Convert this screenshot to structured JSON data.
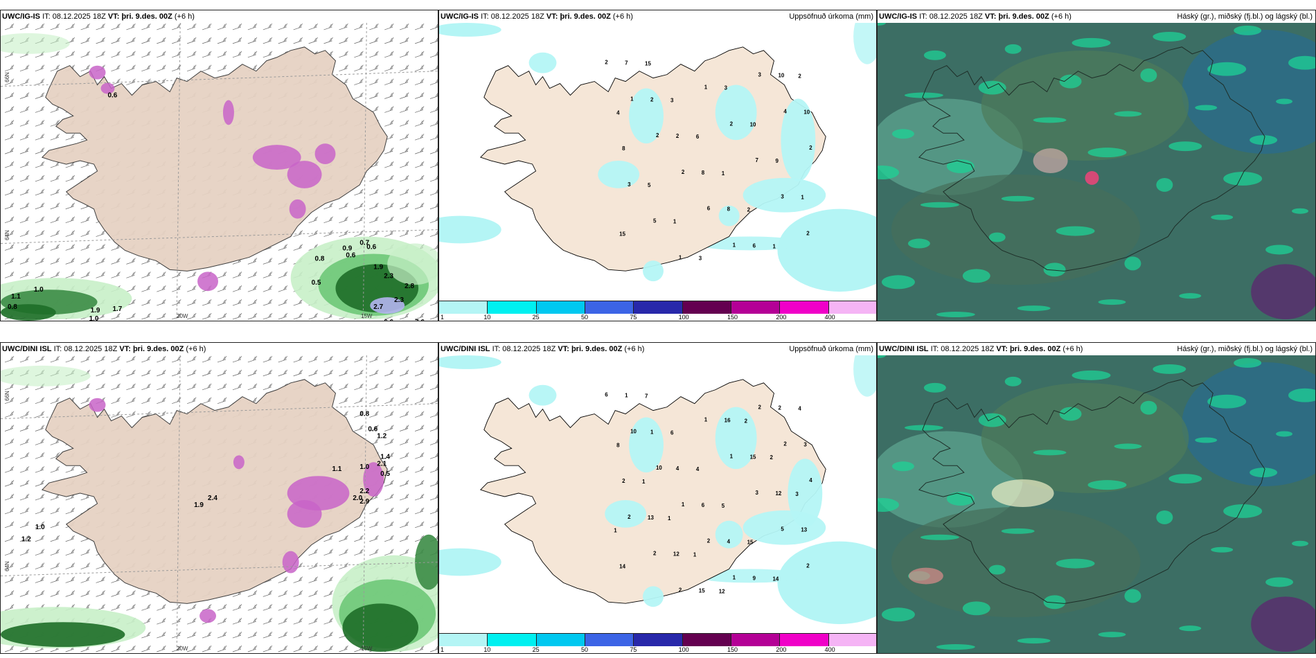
{
  "top_row": {
    "wind_panel": {
      "model": "UWC/IG-IS",
      "it_label": "IT:",
      "it_value": "08.12.2025 18Z",
      "vt_label": "VT:",
      "vt_value": "þri. 9.des. 00Z",
      "lead": "(+6 h)",
      "axis": {
        "lat1": "66N",
        "lat2": "64N",
        "lon1": "20W",
        "lon2": "15W"
      },
      "labels": [
        "0.6",
        "1.0",
        "1.1",
        "0.8",
        "1.7",
        "1.9",
        "1.0",
        "1.1",
        "1.2",
        "0.6",
        "0.5",
        "0.6",
        "0.7",
        "0.9",
        "0.6",
        "0.8",
        "1.9",
        "2.3",
        "2.8",
        "2.3",
        "2.7",
        "6.6",
        "7.6"
      ]
    },
    "precip_panel": {
      "model": "UWC/IG-IS",
      "it_label": "IT:",
      "it_value": "08.12.2025 18Z",
      "vt_label": "VT:",
      "vt_value": "þri. 9.des. 00Z",
      "lead": "(+6 h)",
      "title": "Uppsöfnuð úrkoma (mm)",
      "labels": [
        "2",
        "1",
        "2",
        "2",
        "6",
        "1",
        "3",
        "4",
        "2",
        "3",
        "5",
        "1",
        "1",
        "2",
        "7",
        "3",
        "2",
        "7",
        "2",
        "2",
        "8",
        "8",
        "6",
        "10",
        "10",
        "8",
        "5",
        "1",
        "3",
        "3",
        "10",
        "9",
        "1",
        "15",
        "15",
        "3",
        "6",
        "1",
        "2",
        "1",
        "2",
        "4"
      ]
    },
    "cloud_panel": {
      "model": "UWC/IG-IS",
      "it_label": "IT:",
      "it_value": "08.12.2025 18Z",
      "vt_label": "VT:",
      "vt_value": "þri. 9.des. 00Z",
      "lead": "(+6 h)",
      "title": "Háský (gr.), miðský (fj.bl.) og lágský (bl.)"
    }
  },
  "bottom_row": {
    "wind_panel": {
      "model": "UWC/DINI ISL",
      "it_label": "IT:",
      "it_value": "08.12.2025 18Z",
      "vt_label": "VT:",
      "vt_value": "þri. 9.des. 00Z",
      "lead": "(+6 h)",
      "axis": {
        "lat1": "66N",
        "lat2": "64N",
        "lon1": "20W",
        "lon2": "15W"
      },
      "labels": [
        "0.8",
        "0.6",
        "1.2",
        "1.0",
        "1.1",
        "1.4",
        "2.1",
        "0.5",
        "2.2",
        "2.0",
        "2.9",
        "2.4",
        "1.9",
        "1.0",
        "1.2"
      ]
    },
    "precip_panel": {
      "model": "UWC/DINI ISL",
      "it_label": "IT:",
      "it_value": "08.12.2025 18Z",
      "vt_label": "VT:",
      "vt_value": "þri. 9.des. 00Z",
      "lead": "(+6 h)",
      "title": "Uppsöfnuð úrkoma (mm)",
      "labels": [
        "6",
        "10",
        "10",
        "1",
        "2",
        "1",
        "2",
        "2",
        "4",
        "2",
        "2",
        "2",
        "1",
        "1",
        "3",
        "5",
        "2",
        "1",
        "1",
        "4",
        "6",
        "4",
        "9",
        "2",
        "3",
        "2",
        "13",
        "12",
        "15",
        "16",
        "15",
        "12",
        "13",
        "14",
        "7",
        "6",
        "4",
        "5",
        "15",
        "14",
        "4",
        "8",
        "1",
        "1",
        "1",
        "12",
        "2",
        "2",
        "3",
        "1"
      ]
    },
    "cloud_panel": {
      "model": "UWC/DINI ISL",
      "it_label": "IT:",
      "it_value": "08.12.2025 18Z",
      "vt_label": "VT:",
      "vt_value": "þri. 9.des. 00Z",
      "lead": "(+6 h)",
      "title": "Háský (gr.), miðský (fj.bl.) og lágský (bl.)"
    }
  },
  "precip_colorbar": {
    "ticks": [
      "1",
      "10",
      "25",
      "50",
      "75",
      "100",
      "150",
      "200",
      "400"
    ],
    "colors": [
      "#b4f5f5",
      "#00f0f0",
      "#00c8f0",
      "#3c64e6",
      "#2828aa",
      "#640050",
      "#b40096",
      "#f000c8",
      "#f5b4f5"
    ]
  },
  "colors": {
    "land": "#f5e6d7",
    "land_wind": "#e6d2c3",
    "sea": "#ffffff",
    "precip_light": "#b4f5f5",
    "precip_mid": "#78e6f0",
    "green_light": "#c8f0c8",
    "green_dark": "#1e6e28",
    "magenta": "#c864c8",
    "cloud_base": "#3c6e64",
    "cloud_teal": "#1ed296"
  }
}
